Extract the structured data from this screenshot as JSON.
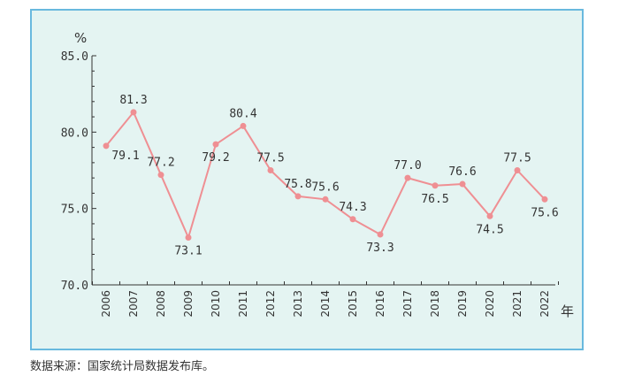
{
  "chart_data": {
    "type": "line",
    "categories": [
      "2006",
      "2007",
      "2008",
      "2009",
      "2010",
      "2011",
      "2012",
      "2013",
      "2014",
      "2015",
      "2016",
      "2017",
      "2018",
      "2019",
      "2020",
      "2021",
      "2022"
    ],
    "values": [
      79.1,
      81.3,
      77.2,
      73.1,
      79.2,
      80.4,
      77.5,
      75.8,
      75.6,
      74.3,
      73.3,
      77.0,
      76.5,
      76.6,
      74.5,
      77.5,
      75.6
    ],
    "data_labels": [
      "79.1",
      "81.3",
      "77.2",
      "73.1",
      "79.2",
      "80.4",
      "77.5",
      "75.8",
      "75.6",
      "74.3",
      "73.3",
      "77.0",
      "76.5",
      "76.6",
      "74.5",
      "77.5",
      "75.6"
    ],
    "ylim": [
      70.0,
      85.0
    ],
    "yticks": [
      "70.0",
      "75.0",
      "80.0",
      "85.0"
    ],
    "ylabel": "%",
    "xlabel": "年",
    "grid": false,
    "colors": {
      "line": "#ef8f93",
      "panel_bg": "#e4f4f2",
      "panel_border": "#69b9de",
      "axis": "#333333"
    }
  },
  "source_note": "数据来源：国家统计局数据发布库。"
}
